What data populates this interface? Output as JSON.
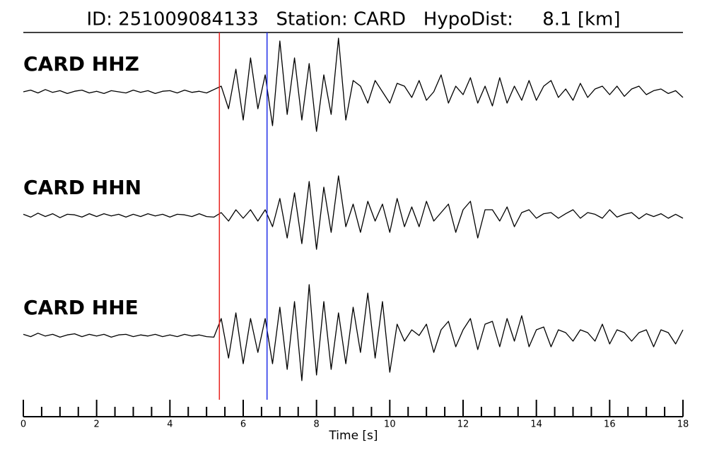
{
  "chart_data": {
    "type": "seismogram",
    "title": "ID: 251009084133   Station: CARD   HypoDist:     8.1 [km]",
    "xlabel": "Time [s]",
    "xlim": [
      0,
      18
    ],
    "xticks": [
      0,
      2,
      4,
      6,
      8,
      10,
      12,
      14,
      16,
      18
    ],
    "xminorticks": [
      0.5,
      1,
      1.5,
      2.5,
      3,
      3.5,
      4.5,
      5,
      5.5,
      6.5,
      7,
      7.5,
      8.5,
      9,
      9.5,
      10.5,
      11,
      11.5,
      12.5,
      13,
      13.5,
      14.5,
      15,
      15.5,
      16.5,
      17,
      17.5
    ],
    "ylim": [
      -1,
      1
    ],
    "label_color": "#4a9a0a",
    "picks": [
      {
        "x": 5.35,
        "color": "#e8221f"
      },
      {
        "x": 6.65,
        "color": "#1f2ee8"
      }
    ],
    "x": [
      0,
      0.2,
      0.4,
      0.6,
      0.8,
      1,
      1.2,
      1.4,
      1.6,
      1.8,
      2,
      2.2,
      2.4,
      2.6,
      2.8,
      3,
      3.2,
      3.4,
      3.6,
      3.8,
      4,
      4.2,
      4.4,
      4.6,
      4.8,
      5,
      5.2,
      5.4,
      5.6,
      5.8,
      6,
      6.2,
      6.4,
      6.6,
      6.8,
      7,
      7.2,
      7.4,
      7.6,
      7.8,
      8,
      8.2,
      8.4,
      8.6,
      8.8,
      9,
      9.2,
      9.4,
      9.6,
      9.8,
      10,
      10.2,
      10.4,
      10.6,
      10.8,
      11,
      11.2,
      11.4,
      11.6,
      11.8,
      12,
      12.2,
      12.4,
      12.6,
      12.8,
      13,
      13.2,
      13.4,
      13.6,
      13.8,
      14,
      14.2,
      14.4,
      14.6,
      14.8,
      15,
      15.2,
      15.4,
      15.6,
      15.8,
      16,
      16.2,
      16.4,
      16.6,
      16.8,
      17,
      17.2,
      17.4,
      17.6,
      17.8,
      18
    ],
    "series": [
      {
        "name": "CARD HHZ",
        "color": "#000000",
        "values": [
          0,
          0.03,
          -0.02,
          0.04,
          -0.01,
          0.02,
          -0.03,
          0.01,
          0.03,
          -0.02,
          0.01,
          -0.03,
          0.02,
          0,
          -0.02,
          0.03,
          -0.01,
          0.02,
          -0.03,
          0.01,
          0.02,
          -0.02,
          0.03,
          -0.01,
          0.01,
          -0.02,
          0.04,
          0.1,
          -0.3,
          0.4,
          -0.5,
          0.6,
          -0.3,
          0.3,
          -0.6,
          0.9,
          -0.4,
          0.6,
          -0.5,
          0.5,
          -0.7,
          0.3,
          -0.4,
          0.95,
          -0.5,
          0.2,
          0.1,
          -0.2,
          0.2,
          0,
          -0.2,
          0.15,
          0.1,
          -0.1,
          0.2,
          -0.15,
          0,
          0.3,
          -0.2,
          0.1,
          -0.05,
          0.25,
          -0.2,
          0.1,
          -0.25,
          0.25,
          -0.2,
          0.1,
          -0.15,
          0.2,
          -0.15,
          0.1,
          0.2,
          -0.1,
          0.05,
          -0.15,
          0.15,
          -0.1,
          0.05,
          0.1,
          -0.05,
          0.1,
          -0.08,
          0.05,
          0.1,
          -0.05,
          0.02,
          0.05,
          -0.03,
          0.02,
          -0.1
        ]
      },
      {
        "name": "CARD HHN",
        "color": "#000000",
        "values": [
          0.02,
          -0.03,
          0.04,
          -0.02,
          0.03,
          -0.04,
          0.02,
          0.01,
          -0.03,
          0.03,
          -0.02,
          0.03,
          -0.01,
          0.02,
          -0.03,
          0.02,
          -0.02,
          0.03,
          -0.01,
          0.02,
          -0.03,
          0.02,
          0.01,
          -0.02,
          0.03,
          -0.02,
          -0.03,
          0.05,
          -0.1,
          0.1,
          -0.05,
          0.1,
          -0.1,
          0.1,
          -0.2,
          0.3,
          -0.4,
          0.4,
          -0.5,
          0.6,
          -0.6,
          0.5,
          -0.3,
          0.7,
          -0.2,
          0.2,
          -0.3,
          0.25,
          -0.1,
          0.2,
          -0.3,
          0.3,
          -0.2,
          0.15,
          -0.2,
          0.25,
          -0.1,
          0.05,
          0.2,
          -0.3,
          0.1,
          0.25,
          -0.4,
          0.1,
          0.1,
          -0.1,
          0.15,
          -0.2,
          0.05,
          0.1,
          -0.05,
          0.03,
          0.05,
          -0.05,
          0.03,
          0.1,
          -0.05,
          0.05,
          0.02,
          -0.05,
          0.1,
          -0.03,
          0.02,
          0.05,
          -0.06,
          0.03,
          -0.02,
          0.03,
          -0.05,
          0.02,
          -0.05
        ]
      },
      {
        "name": "CARD HHE",
        "color": "#000000",
        "values": [
          0.02,
          -0.02,
          0.04,
          -0.01,
          0.02,
          -0.03,
          0.01,
          0.03,
          -0.02,
          0.02,
          -0.01,
          0.02,
          -0.03,
          0.01,
          0.02,
          -0.02,
          0.01,
          -0.01,
          0.02,
          -0.02,
          0.01,
          -0.02,
          0.02,
          -0.01,
          0.01,
          -0.02,
          -0.03,
          0.3,
          -0.4,
          0.4,
          -0.5,
          0.3,
          -0.3,
          0.3,
          -0.5,
          0.5,
          -0.6,
          0.6,
          -0.8,
          0.9,
          -0.7,
          0.6,
          -0.6,
          0.4,
          -0.5,
          0.5,
          -0.3,
          0.75,
          -0.4,
          0.6,
          -0.65,
          0.2,
          -0.1,
          0.1,
          0,
          0.2,
          -0.3,
          0.1,
          0.25,
          -0.2,
          0.1,
          0.3,
          -0.25,
          0.2,
          0.25,
          -0.2,
          0.3,
          -0.1,
          0.35,
          -0.2,
          0.1,
          0.15,
          -0.2,
          0.1,
          0.05,
          -0.1,
          0.1,
          0.05,
          -0.1,
          0.2,
          -0.15,
          0.1,
          0.05,
          -0.1,
          0.05,
          0.1,
          -0.2,
          0.1,
          0.05,
          -0.15,
          0.1
        ]
      }
    ]
  }
}
